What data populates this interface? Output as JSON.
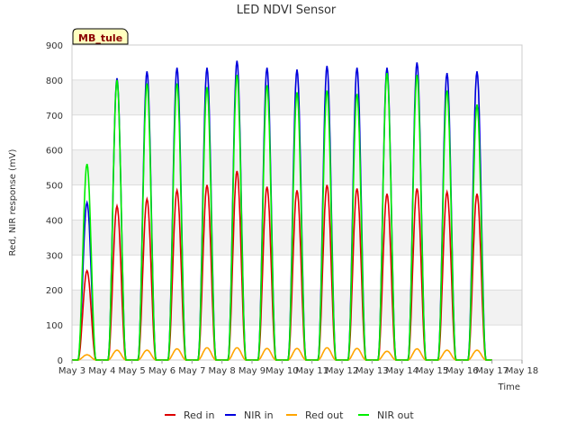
{
  "chart_data": {
    "type": "line",
    "title": "LED NDVI Sensor",
    "site_tag": "MB_tule",
    "xlabel": "Time",
    "ylabel": "Red, NIR response (mV)",
    "ylim": [
      0,
      900
    ],
    "y_ticks": [
      0,
      100,
      200,
      300,
      400,
      500,
      600,
      700,
      800,
      900
    ],
    "xlim": [
      "May 3",
      "May 18"
    ],
    "x_ticks": [
      "May 3",
      "May 4",
      "May 5",
      "May 6",
      "May 7",
      "May 8",
      "May 9",
      "May 10",
      "May 11",
      "May 12",
      "May 13",
      "May 14",
      "May 15",
      "May 16",
      "May 17",
      "May 18"
    ],
    "grid": true,
    "legend_position": "bottom",
    "x_days": [
      3.5,
      4.5,
      5.5,
      6.5,
      7.5,
      8.5,
      9.5,
      10.5,
      11.5,
      12.5,
      13.5,
      14.5,
      15.5,
      16.5,
      17.5
    ],
    "series": [
      {
        "name": "Red in",
        "color": "#dd0000",
        "daily_peak": [
          255,
          440,
          460,
          485,
          500,
          540,
          495,
          485,
          500,
          490,
          475,
          490,
          480,
          475,
          null
        ]
      },
      {
        "name": "NIR in",
        "color": "#0000dd",
        "daily_peak": [
          450,
          805,
          825,
          835,
          835,
          855,
          835,
          830,
          840,
          835,
          835,
          850,
          820,
          825,
          null
        ]
      },
      {
        "name": "Red out",
        "color": "#ffa500",
        "daily_peak": [
          15,
          28,
          28,
          32,
          35,
          35,
          33,
          33,
          35,
          33,
          25,
          32,
          28,
          28,
          null
        ]
      },
      {
        "name": "NIR out",
        "color": "#00ee00",
        "daily_peak": [
          560,
          800,
          790,
          790,
          780,
          815,
          785,
          765,
          770,
          760,
          820,
          815,
          770,
          730,
          null
        ]
      }
    ]
  }
}
